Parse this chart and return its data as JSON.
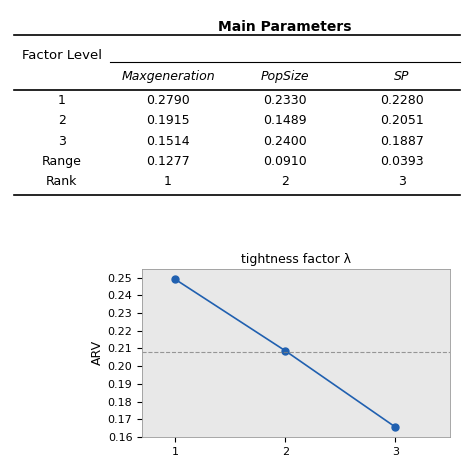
{
  "table_title_main": "Main Parameters",
  "col_header_left": "Factor Level",
  "col_headers": [
    "Maxgeneration",
    "PopSize",
    "SP"
  ],
  "row_labels": [
    "1",
    "2",
    "3",
    "Range",
    "Rank"
  ],
  "table_data": [
    [
      "0.2790",
      "0.2330",
      "0.2280"
    ],
    [
      "0.1915",
      "0.1489",
      "0.2051"
    ],
    [
      "0.1514",
      "0.2400",
      "0.1887"
    ],
    [
      "0.1277",
      "0.0910",
      "0.0393"
    ],
    [
      "1",
      "2",
      "3"
    ]
  ],
  "plot_title": "tightness factor λ",
  "x_values": [
    1,
    2,
    3
  ],
  "y_values": [
    0.249,
    0.2087,
    0.1657
  ],
  "ylabel": "ARV",
  "ylim": [
    0.16,
    0.255
  ],
  "yticks": [
    0.16,
    0.17,
    0.18,
    0.19,
    0.2,
    0.21,
    0.22,
    0.23,
    0.24,
    0.25
  ],
  "xticks": [
    1,
    2,
    3
  ],
  "hline_y": 0.2078,
  "line_color": "#2060b0",
  "marker_color": "#2060b0",
  "plot_bg": "#e8e8e8"
}
